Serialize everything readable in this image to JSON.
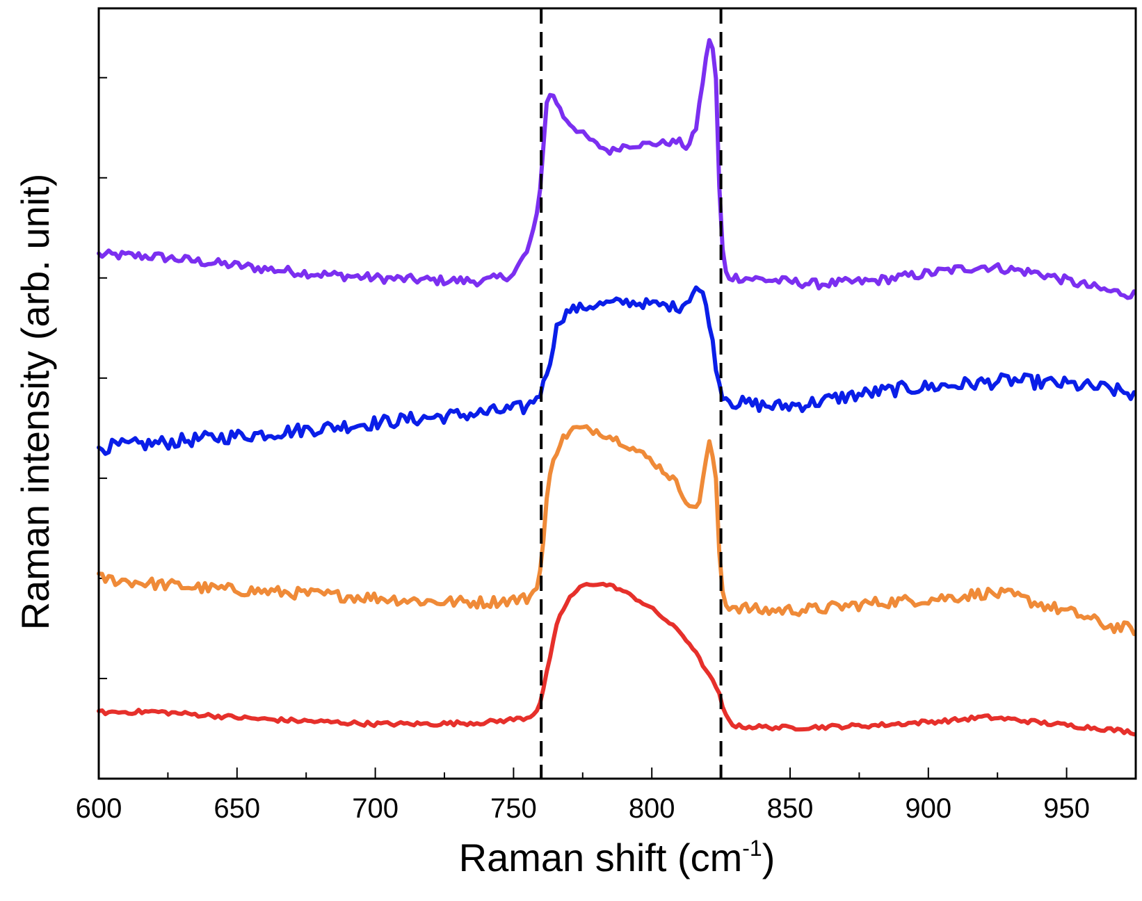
{
  "chart_data": {
    "type": "line",
    "xlabel_main": "Raman shift (cm",
    "xlabel_sup": "-1",
    "xlabel_close": ")",
    "ylabel": "Raman intensity  (arb. unit)",
    "xlim": [
      600,
      975
    ],
    "ylim": [
      0,
      100
    ],
    "x_ticks": [
      "600",
      "650",
      "700",
      "750",
      "800",
      "850",
      "900",
      "950"
    ],
    "x_tick_values": [
      600,
      650,
      700,
      750,
      800,
      850,
      900,
      950
    ],
    "minor_x_step": 25,
    "y_ticks_unlabeled": [
      0,
      13,
      26,
      39,
      52,
      65,
      78,
      91
    ],
    "vlines": [
      760,
      825
    ],
    "vline_color": "#000000",
    "series": [
      {
        "name": "top-purple",
        "color": "#7b2ff0",
        "points": [
          [
            600,
            68.0
          ],
          [
            620,
            67.8
          ],
          [
            640,
            67.0
          ],
          [
            660,
            66.2
          ],
          [
            680,
            65.5
          ],
          [
            700,
            65.0
          ],
          [
            720,
            64.7
          ],
          [
            740,
            64.6
          ],
          [
            750,
            65.5
          ],
          [
            755,
            68.5
          ],
          [
            758,
            72
          ],
          [
            760,
            78
          ],
          [
            762,
            88
          ],
          [
            764,
            89
          ],
          [
            768,
            86
          ],
          [
            772,
            84.5
          ],
          [
            780,
            82.3
          ],
          [
            785,
            81.4
          ],
          [
            790,
            82.2
          ],
          [
            800,
            82.4
          ],
          [
            810,
            82.7
          ],
          [
            813,
            81.8
          ],
          [
            816,
            84.5
          ],
          [
            819,
            92
          ],
          [
            821,
            96.5
          ],
          [
            823,
            93
          ],
          [
            825,
            70
          ],
          [
            827,
            65.2
          ],
          [
            840,
            64.8
          ],
          [
            860,
            64.2
          ],
          [
            880,
            64.6
          ],
          [
            900,
            65.6
          ],
          [
            910,
            66.1
          ],
          [
            920,
            66.5
          ],
          [
            930,
            66.1
          ],
          [
            940,
            65.6
          ],
          [
            955,
            64.2
          ],
          [
            965,
            63.3
          ],
          [
            975,
            62.8
          ]
        ],
        "noise": 0.6
      },
      {
        "name": "second-blue",
        "color": "#0a1ee8",
        "points": [
          [
            600,
            43.0
          ],
          [
            620,
            43.5
          ],
          [
            640,
            44.2
          ],
          [
            660,
            44.8
          ],
          [
            680,
            45.5
          ],
          [
            700,
            46.2
          ],
          [
            720,
            46.9
          ],
          [
            740,
            47.5
          ],
          [
            755,
            48.2
          ],
          [
            760,
            50.2
          ],
          [
            763,
            54
          ],
          [
            766,
            59.2
          ],
          [
            770,
            60.8
          ],
          [
            780,
            61.5
          ],
          [
            790,
            61.9
          ],
          [
            800,
            61.6
          ],
          [
            810,
            61.2
          ],
          [
            813,
            62.1
          ],
          [
            816,
            63.8
          ],
          [
            819,
            62.5
          ],
          [
            821,
            59
          ],
          [
            823,
            54
          ],
          [
            825,
            50.0
          ],
          [
            830,
            48.8
          ],
          [
            845,
            48.3
          ],
          [
            855,
            48.6
          ],
          [
            870,
            49.6
          ],
          [
            890,
            50.6
          ],
          [
            910,
            51.1
          ],
          [
            930,
            51.7
          ],
          [
            950,
            51.2
          ],
          [
            965,
            50.6
          ],
          [
            975,
            49.8
          ]
        ],
        "noise": 0.9
      },
      {
        "name": "third-orange",
        "color": "#ef8a38",
        "points": [
          [
            600,
            26.0
          ],
          [
            620,
            25.3
          ],
          [
            640,
            24.7
          ],
          [
            660,
            24.3
          ],
          [
            680,
            23.9
          ],
          [
            700,
            23.5
          ],
          [
            720,
            23.0
          ],
          [
            740,
            22.9
          ],
          [
            755,
            23.4
          ],
          [
            758,
            24.6
          ],
          [
            760,
            27.5
          ],
          [
            762,
            36
          ],
          [
            764,
            41.5
          ],
          [
            768,
            44.2
          ],
          [
            772,
            45.5
          ],
          [
            780,
            45.2
          ],
          [
            790,
            43.6
          ],
          [
            800,
            41.3
          ],
          [
            808,
            38.8
          ],
          [
            812,
            36.5
          ],
          [
            815,
            34.8
          ],
          [
            817,
            35.8
          ],
          [
            819,
            40.2
          ],
          [
            821,
            43.8
          ],
          [
            823,
            40
          ],
          [
            825,
            25
          ],
          [
            827,
            22.5
          ],
          [
            840,
            21.8
          ],
          [
            860,
            22.0
          ],
          [
            880,
            22.8
          ],
          [
            900,
            23.3
          ],
          [
            910,
            23.6
          ],
          [
            920,
            24.1
          ],
          [
            930,
            23.8
          ],
          [
            940,
            22.7
          ],
          [
            955,
            21.2
          ],
          [
            965,
            19.8
          ],
          [
            975,
            19.4
          ]
        ],
        "noise": 0.75
      },
      {
        "name": "bottom-red",
        "color": "#e6302b",
        "points": [
          [
            600,
            8.6
          ],
          [
            620,
            8.7
          ],
          [
            640,
            8.2
          ],
          [
            660,
            7.7
          ],
          [
            680,
            7.4
          ],
          [
            700,
            7.1
          ],
          [
            720,
            7.1
          ],
          [
            740,
            7.3
          ],
          [
            755,
            7.9
          ],
          [
            758,
            8.6
          ],
          [
            760,
            10.2
          ],
          [
            763,
            15.5
          ],
          [
            766,
            20.5
          ],
          [
            770,
            23.4
          ],
          [
            775,
            25.1
          ],
          [
            780,
            25.3
          ],
          [
            785,
            25.1
          ],
          [
            790,
            24.3
          ],
          [
            800,
            22.1
          ],
          [
            810,
            19.1
          ],
          [
            815,
            16.9
          ],
          [
            820,
            13.8
          ],
          [
            824,
            11.5
          ],
          [
            826,
            8.6
          ],
          [
            830,
            6.8
          ],
          [
            850,
            6.6
          ],
          [
            880,
            6.9
          ],
          [
            910,
            7.6
          ],
          [
            920,
            8.0
          ],
          [
            930,
            7.7
          ],
          [
            945,
            7.1
          ],
          [
            960,
            6.6
          ],
          [
            975,
            6.0
          ]
        ],
        "noise": 0.28
      }
    ]
  }
}
